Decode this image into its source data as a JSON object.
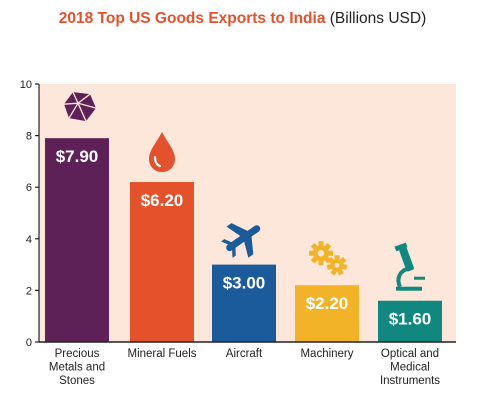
{
  "title": "2018 Top US Goods Exports to India",
  "title_unit": "(Billions USD)",
  "chart_data": {
    "type": "bar",
    "title": "2018 Top US Goods Exports to India (Billions USD)",
    "categories": [
      [
        "Precious",
        "Metals and",
        "Stones"
      ],
      [
        "Mineral Fuels"
      ],
      [
        "Aircraft"
      ],
      [
        "Machinery"
      ],
      [
        "Optical and",
        "Medical",
        "Instruments"
      ]
    ],
    "values": [
      7.9,
      6.2,
      3.0,
      2.2,
      1.6
    ],
    "value_labels": [
      "$7.90",
      "$6.20",
      "$3.00",
      "$2.20",
      "$1.60"
    ],
    "colors": [
      "#5e2157",
      "#e4522c",
      "#1b5a9b",
      "#f2b328",
      "#10877f"
    ],
    "icons": [
      "gem-icon",
      "oil-drop-icon",
      "airplane-icon",
      "gears-icon",
      "microscope-icon"
    ],
    "ylim": [
      0,
      10
    ],
    "yticks": [
      0,
      2,
      4,
      6,
      8,
      10
    ],
    "plot_background": "#fde7da",
    "grid": false,
    "xlabel": "",
    "ylabel": ""
  }
}
